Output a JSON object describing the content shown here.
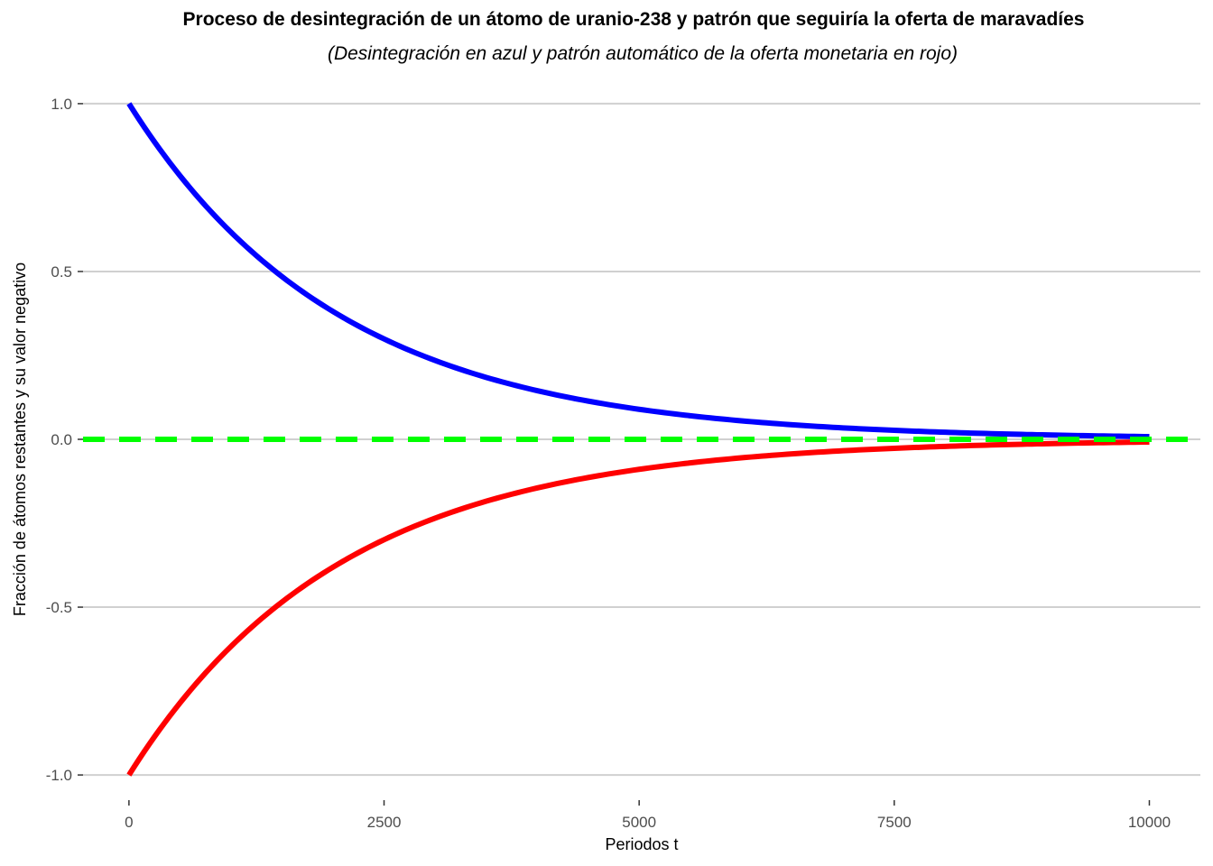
{
  "chart_data": {
    "type": "line",
    "title": "Proceso de desintegración de un átomo de uranio-238 y patrón que seguiría la oferta de maravadíes",
    "subtitle": "(Desintegración en azul y patrón automático de la oferta monetaria en rojo)",
    "xlabel": "Periodos t",
    "ylabel": "Fracción de átomos restantes y su valor negativo",
    "xlim": [
      -450,
      10500
    ],
    "ylim": [
      -1.075,
      1.075
    ],
    "x_ticks": [
      "0",
      "2500",
      "5000",
      "7500",
      "10000"
    ],
    "y_ticks": [
      "-1.0",
      "-0.5",
      "0.0",
      "0.5",
      "1.0"
    ],
    "grid": "horizontal major gridlines",
    "legend": "none",
    "series": [
      {
        "color": "#0000ff",
        "style": "solid",
        "x": [
          0,
          500,
          1000,
          1500,
          2000,
          2500,
          3000,
          3500,
          4000,
          4500,
          5000,
          5500,
          6000,
          6500,
          7000,
          7500,
          8000,
          8500,
          9000,
          9500,
          10000
        ],
        "y": [
          1.0,
          0.787,
          0.619,
          0.487,
          0.383,
          0.302,
          0.237,
          0.187,
          0.147,
          0.116,
          0.091,
          0.072,
          0.056,
          0.044,
          0.035,
          0.027,
          0.022,
          0.017,
          0.013,
          0.01,
          0.008
        ]
      },
      {
        "color": "#ff0000",
        "style": "solid",
        "x": [
          0,
          500,
          1000,
          1500,
          2000,
          2500,
          3000,
          3500,
          4000,
          4500,
          5000,
          5500,
          6000,
          6500,
          7000,
          7500,
          8000,
          8500,
          9000,
          9500,
          10000
        ],
        "y": [
          -1.0,
          -0.787,
          -0.619,
          -0.487,
          -0.383,
          -0.302,
          -0.237,
          -0.187,
          -0.147,
          -0.116,
          -0.091,
          -0.072,
          -0.056,
          -0.044,
          -0.035,
          -0.027,
          -0.022,
          -0.017,
          -0.013,
          -0.01,
          -0.008
        ]
      },
      {
        "color": "#00ff00",
        "style": "dashed",
        "x": [
          -450,
          10500
        ],
        "y": [
          0,
          0
        ]
      }
    ]
  }
}
